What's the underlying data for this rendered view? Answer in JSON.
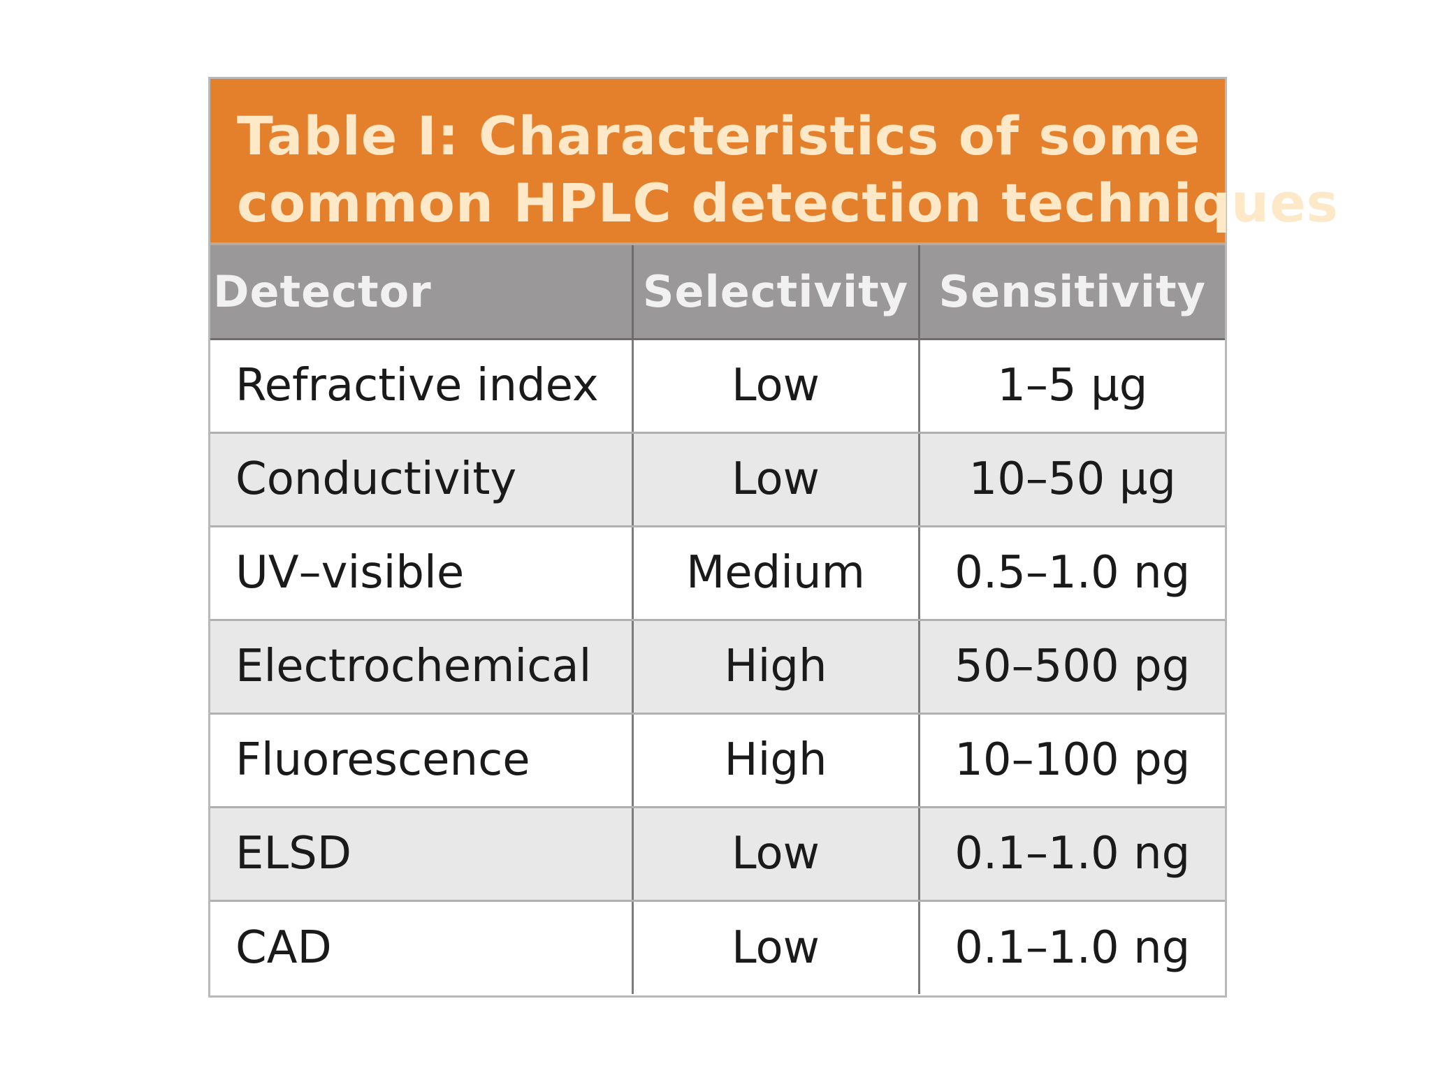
{
  "table": {
    "title_line1": "Table I: Characteristics of some",
    "title_line2": "common HPLC detection techniques",
    "headers": [
      "Detector",
      "Selectivity",
      "Sensitivity"
    ],
    "rows": [
      [
        "Refractive index",
        "Low",
        "1–5 µg"
      ],
      [
        "Conductivity",
        "Low",
        "10–50 µg"
      ],
      [
        "UV–visible",
        "Medium",
        "0.5–1.0 ng"
      ],
      [
        "Electrochemical",
        "High",
        "50–500 pg"
      ],
      [
        "Fluorescence",
        "High",
        "10–100 pg"
      ],
      [
        "ELSD",
        "Low",
        "0.1–1.0 ng"
      ],
      [
        "CAD",
        "Low",
        "0.1–1.0 ng"
      ]
    ],
    "colors": {
      "title_background": "#e47f2b",
      "title_text": "#fde9c8",
      "header_background": "#9a9899",
      "header_text": "#f1f1f1",
      "alt_row_background": "#e8e8e8"
    }
  }
}
